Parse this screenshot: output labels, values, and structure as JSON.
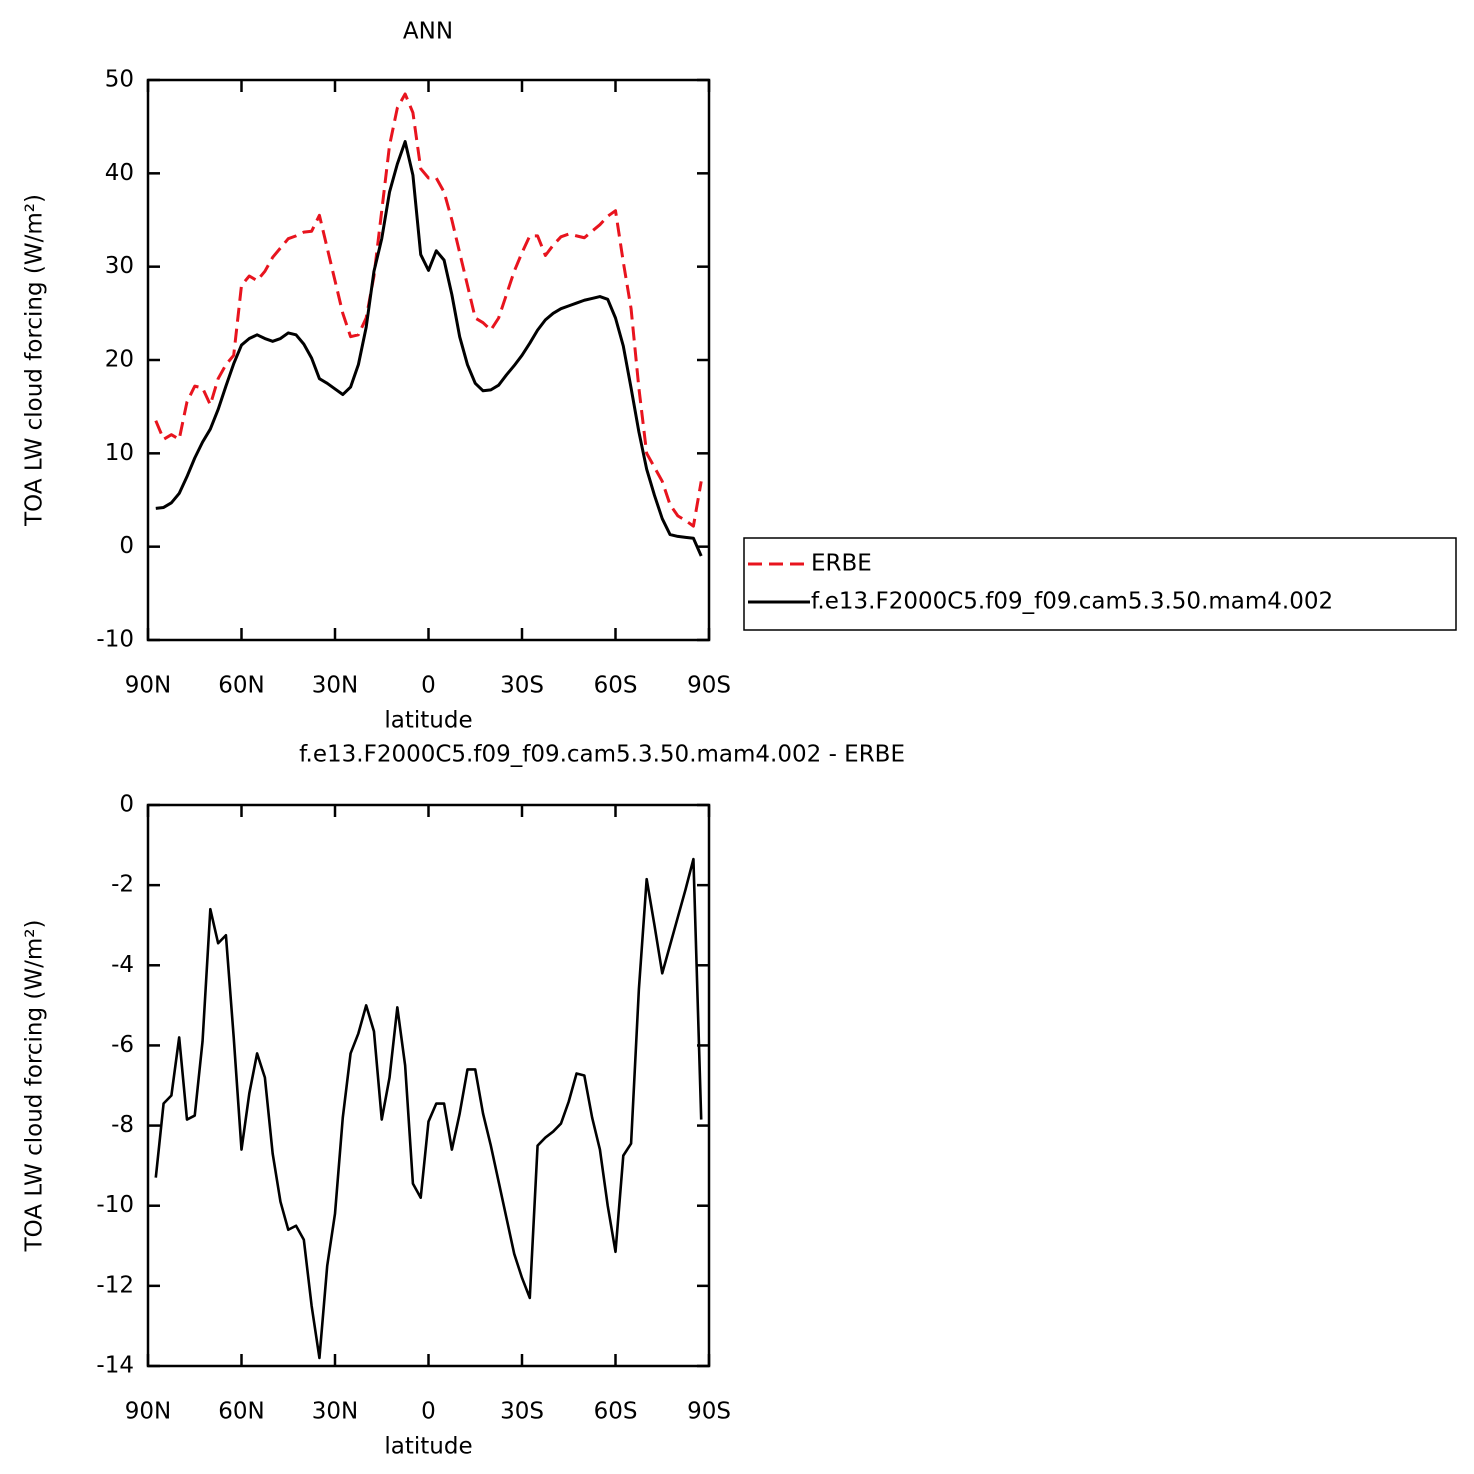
{
  "chart_data": [
    {
      "type": "line",
      "title": "ANN",
      "xlabel": "latitude",
      "ylabel": "TOA LW cloud forcing (W/m²)",
      "x": [
        87.5,
        85,
        82.5,
        80,
        77.5,
        75,
        72.5,
        70,
        67.5,
        65,
        62.5,
        60,
        57.5,
        55,
        52.5,
        50,
        47.5,
        45,
        42.5,
        40,
        37.5,
        35,
        32.5,
        30,
        27.5,
        25,
        22.5,
        20,
        17.5,
        15,
        12.5,
        10,
        7.5,
        5,
        2.5,
        0,
        -2.5,
        -5,
        -7.5,
        -10,
        -12.5,
        -15,
        -17.5,
        -20,
        -22.5,
        -25,
        -27.5,
        -30,
        -32.5,
        -35,
        -37.5,
        -40,
        -42.5,
        -45,
        -47.5,
        -50,
        -52.5,
        -55,
        -57.5,
        -60,
        -62.5,
        -65,
        -67.5,
        -70,
        -72.5,
        -75,
        -77.5,
        -80,
        -82.5,
        -85,
        -87.5
      ],
      "series": [
        {
          "name": "ERBE",
          "color": "#e8141e",
          "style": "dashed",
          "values": [
            13.5,
            11.5,
            12,
            11.5,
            15.5,
            17.2,
            17,
            15.2,
            18,
            19.5,
            20.5,
            28,
            29,
            28.5,
            29.5,
            31,
            32,
            33,
            33.3,
            33.7,
            33.8,
            35.5,
            32,
            28.5,
            25,
            22.5,
            22.7,
            24.5,
            29,
            36,
            43,
            47,
            48.5,
            46.5,
            40.5,
            39.5,
            39.5,
            38,
            35,
            31.5,
            28,
            24.5,
            24,
            23.2,
            24.5,
            27,
            29.5,
            31.5,
            33.3,
            33.3,
            31.2,
            32.3,
            33.2,
            33.5,
            33.3,
            33.1,
            33.8,
            34.5,
            35.4,
            36,
            30.5,
            25.5,
            17,
            10,
            8.5,
            7,
            4.5,
            3.3,
            2.8,
            2.2,
            7
          ]
        },
        {
          "name": "f.e13.F2000C5.f09_f09.cam5.3.50.mam4.002",
          "color": "#000000",
          "style": "solid",
          "values": [
            4.1,
            4.2,
            4.7,
            5.7,
            7.5,
            9.5,
            11.2,
            12.6,
            14.7,
            17.2,
            19.6,
            21.6,
            22.3,
            22.7,
            22.3,
            22,
            22.3,
            22.9,
            22.7,
            21.7,
            20.2,
            18,
            17.5,
            16.9,
            16.3,
            17.1,
            19.5,
            23.5,
            29.5,
            33,
            38,
            41,
            43.4,
            39.8,
            31.3,
            29.6,
            31.7,
            30.7,
            27,
            22.5,
            19.5,
            17.5,
            16.7,
            16.8,
            17.3,
            18.4,
            19.4,
            20.5,
            21.8,
            23.2,
            24.3,
            25,
            25.5,
            25.8,
            26.1,
            26.4,
            26.6,
            26.8,
            26.5,
            24.5,
            21.5,
            17,
            12.3,
            8.3,
            5.5,
            3,
            1.3,
            1.1,
            1,
            0.9,
            -1
          ]
        }
      ],
      "xlim": [
        90,
        -90
      ],
      "xticks": [
        {
          "value": 90,
          "label": "90N"
        },
        {
          "value": 60,
          "label": "60N"
        },
        {
          "value": 30,
          "label": "30N"
        },
        0,
        {
          "value": -30,
          "label": "30S"
        },
        {
          "value": -60,
          "label": "60S"
        },
        {
          "value": -90,
          "label": "90S"
        }
      ],
      "ylim": [
        -10,
        50
      ],
      "yticks": [
        -10,
        0,
        10,
        20,
        30,
        40,
        50
      ],
      "legend": "right"
    },
    {
      "type": "line",
      "title": "f.e13.F2000C5.f09_f09.cam5.3.50.mam4.002 - ERBE",
      "xlabel": "latitude",
      "ylabel": "TOA LW cloud forcing (W/m²)",
      "x": [
        87.5,
        85,
        82.5,
        80,
        77.5,
        75,
        72.5,
        70,
        67.5,
        65,
        62.5,
        60,
        57.5,
        55,
        52.5,
        50,
        47.5,
        45,
        42.5,
        40,
        37.5,
        35,
        32.5,
        30,
        27.5,
        25,
        22.5,
        20,
        17.5,
        15,
        12.5,
        10,
        7.5,
        5,
        2.5,
        0,
        -2.5,
        -5,
        -7.5,
        -10,
        -12.5,
        -15,
        -17.5,
        -20,
        -22.5,
        -25,
        -27.5,
        -30,
        -32.5,
        -35,
        -37.5,
        -40,
        -42.5,
        -45,
        -47.5,
        -50,
        -52.5,
        -55,
        -57.5,
        -60,
        -62.5,
        -65,
        -67.5,
        -70,
        -72.5,
        -75,
        -77.5,
        -80,
        -82.5,
        -85,
        -87.5
      ],
      "color": "#000000",
      "style": "solid",
      "values": [
        -9.3,
        -7.45,
        -7.25,
        -5.8,
        -7.85,
        -7.75,
        -5.9,
        -2.6,
        -3.45,
        -3.25,
        -5.8,
        -8.6,
        -7.2,
        -6.2,
        -6.8,
        -8.7,
        -9.9,
        -10.6,
        -10.5,
        -10.85,
        -12.5,
        -13.8,
        -11.5,
        -10.2,
        -7.8,
        -6.2,
        -5.7,
        -5,
        -5.65,
        -7.85,
        -6.8,
        -5.05,
        -6.5,
        -9.45,
        -9.8,
        -7.9,
        -7.45,
        -7.45,
        -8.6,
        -7.7,
        -6.6,
        -6.6,
        -7.7,
        -8.5,
        -9.4,
        -10.3,
        -11.2,
        -11.8,
        -12.3,
        -8.5,
        -8.3,
        -8.15,
        -7.95,
        -7.4,
        -6.7,
        -6.75,
        -7.8,
        -8.6,
        -10,
        -11.15,
        -8.75,
        -8.45,
        -4.6,
        -1.85,
        -3,
        -4.2,
        -3.5,
        -2.8,
        -2.1,
        -1.35,
        -7.85
      ],
      "xlim": [
        90,
        -90
      ],
      "xticks": [
        {
          "value": 90,
          "label": "90N"
        },
        {
          "value": 60,
          "label": "60N"
        },
        {
          "value": 30,
          "label": "30N"
        },
        0,
        {
          "value": -30,
          "label": "30S"
        },
        {
          "value": -60,
          "label": "60S"
        },
        {
          "value": -90,
          "label": "90S"
        }
      ],
      "ylim": [
        -14,
        0
      ],
      "yticks": [
        -14,
        -12,
        -10,
        -8,
        -6,
        -4,
        -2,
        0
      ]
    }
  ]
}
